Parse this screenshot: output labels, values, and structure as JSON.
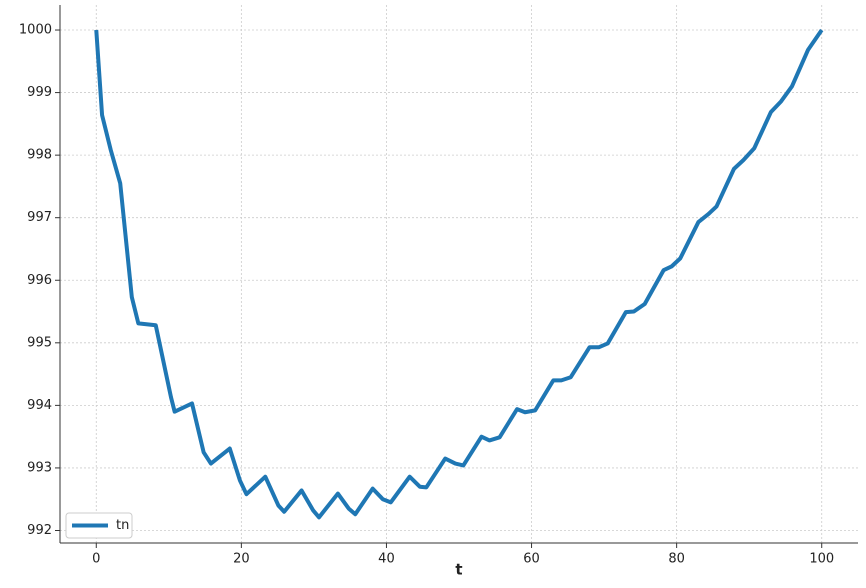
{
  "chart_data": {
    "type": "line",
    "x_label": "t",
    "series": [
      {
        "name": "tn",
        "color": "#1f77b4",
        "x": [
          0,
          0.8,
          2,
          3.3,
          4.9,
          5.8,
          8.2,
          10.3,
          10.8,
          13.2,
          14.8,
          15.8,
          18.4,
          19.8,
          20.7,
          23.3,
          25.1,
          25.9,
          28.3,
          29.9,
          30.7,
          33.3,
          34.8,
          35.7,
          38.1,
          39.5,
          40.6,
          43.2,
          44.6,
          45.5,
          48.1,
          49.5,
          50.6,
          53.1,
          54.2,
          55.6,
          58.0,
          59.1,
          60.5,
          63.0,
          64.1,
          65.4,
          68.0,
          69.3,
          70.5,
          73.0,
          74.1,
          75.6,
          78.2,
          79.3,
          80.5,
          83.0,
          84.4,
          85.5,
          87.9,
          89.2,
          90.7,
          93.0,
          94.4,
          95.9,
          98.1,
          100
        ],
        "values": [
          1000,
          998.64,
          998.08,
          997.55,
          995.73,
          995.31,
          995.28,
          994.13,
          993.9,
          994.03,
          993.25,
          993.07,
          993.31,
          992.8,
          992.58,
          992.86,
          992.4,
          992.3,
          992.64,
          992.32,
          992.21,
          992.59,
          992.35,
          992.26,
          992.67,
          992.5,
          992.45,
          992.86,
          992.7,
          992.69,
          993.15,
          993.07,
          993.04,
          993.5,
          993.44,
          993.49,
          993.94,
          993.89,
          993.92,
          994.4,
          994.4,
          994.45,
          994.93,
          994.93,
          994.99,
          995.49,
          995.5,
          995.62,
          996.16,
          996.22,
          996.35,
          996.93,
          997.06,
          997.18,
          997.78,
          997.92,
          998.11,
          998.69,
          998.86,
          999.1,
          999.68,
          1000
        ]
      }
    ],
    "xlim": [
      -5,
      105
    ],
    "xticks": [
      0,
      20,
      40,
      60,
      80,
      100
    ],
    "ylim": [
      991.8,
      1000.4
    ],
    "yticks": [
      992,
      993,
      994,
      995,
      996,
      997,
      998,
      999,
      1000
    ],
    "grid": true,
    "legend": "lower left"
  }
}
